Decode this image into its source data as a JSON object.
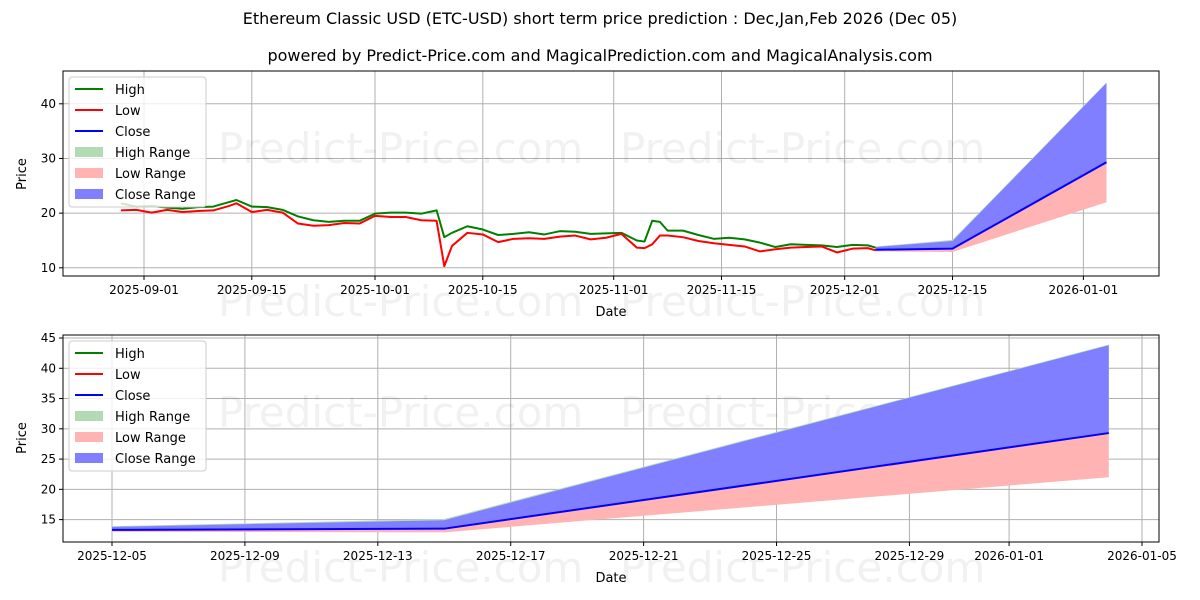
{
  "header": {
    "title": "Ethereum Classic USD (ETC-USD) short term price prediction : Dec,Jan,Feb 2026 (Dec 05)",
    "subtitle": "powered by Predict-Price.com and MagicalPrediction.com and MagicalAnalysis.com"
  },
  "watermark": "Predict-Price.com",
  "colors": {
    "high": "#008000",
    "low": "#ff0000",
    "close": "#0000ff",
    "high_range": "#b3dbb3",
    "low_range": "#ffb3b3",
    "close_range": "#7f7fff",
    "grid": "#b0b0b0"
  },
  "legend": [
    "High",
    "Low",
    "Close",
    "High Range",
    "Low Range",
    "Close Range"
  ],
  "chart_data": [
    {
      "type": "line",
      "title": "Historical + forecast (Aug 2025 – Jan 2026)",
      "xlabel": "Date",
      "ylabel": "Price",
      "ylim": [
        8.5,
        46
      ],
      "yticks": [
        10,
        20,
        30,
        40
      ],
      "xticks": [
        "2025-09-01",
        "2025-09-15",
        "2025-10-01",
        "2025-10-15",
        "2025-11-01",
        "2025-11-15",
        "2025-12-01",
        "2025-12-15",
        "2026-01-01"
      ],
      "grid": true,
      "legend_position": "upper left",
      "series": [
        {
          "name": "High",
          "x": [
            "2025-08-29",
            "2025-08-31",
            "2025-09-02",
            "2025-09-04",
            "2025-09-06",
            "2025-09-08",
            "2025-09-10",
            "2025-09-12",
            "2025-09-13",
            "2025-09-15",
            "2025-09-17",
            "2025-09-19",
            "2025-09-21",
            "2025-09-23",
            "2025-09-25",
            "2025-09-27",
            "2025-09-29",
            "2025-10-01",
            "2025-10-03",
            "2025-10-05",
            "2025-10-07",
            "2025-10-09",
            "2025-10-10",
            "2025-10-11",
            "2025-10-13",
            "2025-10-15",
            "2025-10-17",
            "2025-10-19",
            "2025-10-21",
            "2025-10-23",
            "2025-10-25",
            "2025-10-27",
            "2025-10-29",
            "2025-10-31",
            "2025-11-02",
            "2025-11-04",
            "2025-11-05",
            "2025-11-06",
            "2025-11-07",
            "2025-11-08",
            "2025-11-10",
            "2025-11-12",
            "2025-11-14",
            "2025-11-16",
            "2025-11-18",
            "2025-11-20",
            "2025-11-22",
            "2025-11-24",
            "2025-11-26",
            "2025-11-28",
            "2025-11-30",
            "2025-12-02",
            "2025-12-04",
            "2025-12-05"
          ],
          "values": [
            21.8,
            21.2,
            21.3,
            21.0,
            20.8,
            21.1,
            21.2,
            22.0,
            22.4,
            21.2,
            21.1,
            20.6,
            19.4,
            18.7,
            18.4,
            18.6,
            18.6,
            19.9,
            20.1,
            20.1,
            19.9,
            20.5,
            15.6,
            16.4,
            17.6,
            17.0,
            16.0,
            16.2,
            16.5,
            16.1,
            16.7,
            16.6,
            16.2,
            16.3,
            16.4,
            15.0,
            14.8,
            18.6,
            18.4,
            16.8,
            16.8,
            16.0,
            15.3,
            15.5,
            15.2,
            14.6,
            13.8,
            14.3,
            14.2,
            14.1,
            13.8,
            14.2,
            14.1,
            13.7
          ]
        },
        {
          "name": "Low",
          "x": [
            "2025-08-29",
            "2025-08-31",
            "2025-09-02",
            "2025-09-04",
            "2025-09-06",
            "2025-09-08",
            "2025-09-10",
            "2025-09-12",
            "2025-09-13",
            "2025-09-15",
            "2025-09-17",
            "2025-09-19",
            "2025-09-21",
            "2025-09-23",
            "2025-09-25",
            "2025-09-27",
            "2025-09-29",
            "2025-10-01",
            "2025-10-03",
            "2025-10-05",
            "2025-10-07",
            "2025-10-09",
            "2025-10-10",
            "2025-10-11",
            "2025-10-13",
            "2025-10-15",
            "2025-10-17",
            "2025-10-19",
            "2025-10-21",
            "2025-10-23",
            "2025-10-25",
            "2025-10-27",
            "2025-10-29",
            "2025-10-31",
            "2025-11-02",
            "2025-11-04",
            "2025-11-05",
            "2025-11-06",
            "2025-11-07",
            "2025-11-08",
            "2025-11-10",
            "2025-11-12",
            "2025-11-14",
            "2025-11-16",
            "2025-11-18",
            "2025-11-20",
            "2025-11-22",
            "2025-11-24",
            "2025-11-26",
            "2025-11-28",
            "2025-11-30",
            "2025-12-02",
            "2025-12-04",
            "2025-12-05"
          ],
          "values": [
            20.5,
            20.6,
            20.1,
            20.6,
            20.2,
            20.4,
            20.5,
            21.3,
            21.8,
            20.2,
            20.6,
            20.1,
            18.1,
            17.7,
            17.8,
            18.2,
            18.1,
            19.5,
            19.3,
            19.3,
            18.7,
            18.6,
            10.3,
            14.0,
            16.4,
            16.1,
            14.7,
            15.3,
            15.4,
            15.3,
            15.7,
            15.9,
            15.2,
            15.5,
            16.2,
            13.7,
            13.6,
            14.3,
            15.9,
            15.9,
            15.6,
            14.9,
            14.5,
            14.2,
            13.9,
            13.0,
            13.4,
            13.7,
            13.8,
            13.9,
            12.8,
            13.5,
            13.6,
            13.2
          ]
        },
        {
          "name": "Close",
          "x": [
            "2025-12-05",
            "2025-12-15",
            "2026-01-04"
          ],
          "values": [
            13.3,
            13.5,
            29.3
          ]
        },
        {
          "name": "High Range",
          "x": [
            "2025-12-05",
            "2025-12-15",
            "2026-01-04"
          ],
          "upper": [
            13.9,
            15.1,
            43.9
          ],
          "lower": [
            13.3,
            13.5,
            29.3
          ]
        },
        {
          "name": "Low Range",
          "x": [
            "2025-12-05",
            "2025-12-15",
            "2026-01-04"
          ],
          "upper": [
            13.3,
            13.5,
            29.3
          ],
          "lower": [
            13.0,
            12.9,
            22.0
          ]
        },
        {
          "name": "Close Range",
          "x": [
            "2025-12-05",
            "2025-12-15",
            "2026-01-04"
          ],
          "upper": [
            13.8,
            14.9,
            43.8
          ],
          "lower": [
            13.3,
            13.5,
            29.3
          ]
        }
      ]
    },
    {
      "type": "line",
      "title": "Forecast detail (Dec 2025 – Jan 2026)",
      "xlabel": "Date",
      "ylabel": "Price",
      "ylim": [
        11.3,
        45.5
      ],
      "yticks": [
        15,
        20,
        25,
        30,
        35,
        40,
        45
      ],
      "xticks": [
        "2025-12-05",
        "2025-12-09",
        "2025-12-13",
        "2025-12-17",
        "2025-12-21",
        "2025-12-25",
        "2025-12-29",
        "2026-01-01",
        "2026-01-05"
      ],
      "grid": true,
      "legend_position": "upper left",
      "series": [
        {
          "name": "Close",
          "x": [
            "2025-12-05",
            "2025-12-15",
            "2026-01-04"
          ],
          "values": [
            13.3,
            13.5,
            29.3
          ]
        },
        {
          "name": "High Range",
          "x": [
            "2025-12-05",
            "2025-12-15",
            "2026-01-04"
          ],
          "upper": [
            13.9,
            15.1,
            43.9
          ],
          "lower": [
            13.3,
            13.5,
            29.3
          ]
        },
        {
          "name": "Low Range",
          "x": [
            "2025-12-05",
            "2025-12-15",
            "2026-01-04"
          ],
          "upper": [
            13.3,
            13.5,
            29.3
          ],
          "lower": [
            13.0,
            12.9,
            22.0
          ]
        },
        {
          "name": "Close Range",
          "x": [
            "2025-12-05",
            "2025-12-15",
            "2026-01-04"
          ],
          "upper": [
            13.8,
            14.9,
            43.8
          ],
          "lower": [
            13.3,
            13.5,
            29.3
          ]
        }
      ]
    }
  ]
}
